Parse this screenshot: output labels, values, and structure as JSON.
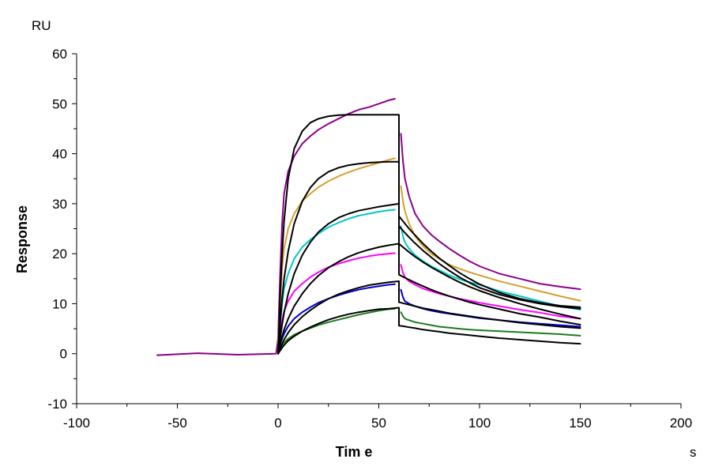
{
  "chart_data": {
    "type": "line",
    "title": "",
    "xlabel": "Tim e",
    "ylabel": "Response",
    "x_unit": "s",
    "y_unit": "RU",
    "xlim": [
      -100,
      200
    ],
    "ylim": [
      -10,
      60
    ],
    "x_ticks": [
      -100,
      -50,
      0,
      50,
      100,
      150,
      200
    ],
    "y_ticks": [
      -10,
      0,
      10,
      20,
      30,
      40,
      50,
      60
    ],
    "grid": false,
    "legend": "none",
    "series": [
      {
        "color": "#8B008B",
        "x": [
          -60,
          -40,
          -20,
          -1,
          0,
          1,
          2,
          3,
          5,
          8,
          12,
          16,
          20,
          25,
          30,
          35,
          40,
          45,
          50,
          55,
          58,
          60,
          61,
          62,
          63,
          65,
          68,
          72,
          76,
          80,
          85,
          90,
          95,
          100,
          110,
          120,
          130,
          140,
          150
        ],
        "y": [
          -0.3,
          0.1,
          -0.2,
          0.0,
          3.0,
          16.0,
          26.0,
          32.0,
          36.5,
          39.5,
          42.0,
          43.5,
          44.8,
          46.0,
          47.0,
          48.0,
          48.8,
          49.3,
          50.0,
          50.7,
          51.0,
          null,
          44.0,
          38.5,
          35.0,
          31.5,
          28.0,
          25.5,
          23.8,
          22.5,
          21.0,
          19.7,
          18.5,
          17.5,
          16.0,
          15.0,
          14.0,
          13.4,
          12.9
        ]
      },
      {
        "color": "#D4A030",
        "x": [
          0,
          1,
          2,
          3,
          5,
          8,
          12,
          16,
          20,
          25,
          30,
          35,
          40,
          45,
          50,
          55,
          58,
          60,
          61,
          62,
          63,
          65,
          68,
          72,
          76,
          80,
          85,
          90,
          95,
          100,
          110,
          120,
          130,
          140,
          150
        ],
        "y": [
          2.0,
          10.0,
          17.0,
          21.0,
          25.0,
          28.0,
          30.5,
          32.0,
          33.3,
          34.5,
          35.5,
          36.3,
          37.0,
          37.6,
          38.2,
          38.8,
          39.1,
          null,
          33.5,
          30.5,
          28.5,
          26.0,
          23.5,
          21.5,
          20.0,
          19.0,
          17.8,
          17.0,
          16.3,
          15.7,
          14.5,
          13.5,
          12.5,
          11.5,
          10.6
        ]
      },
      {
        "color": "#00C8C8",
        "x": [
          0,
          1,
          2,
          3,
          5,
          8,
          12,
          16,
          20,
          25,
          30,
          35,
          40,
          45,
          50,
          55,
          58,
          60,
          61,
          62,
          63,
          65,
          68,
          72,
          76,
          80,
          85,
          90,
          95,
          100,
          110,
          120,
          130,
          140,
          150
        ],
        "y": [
          1.5,
          6.0,
          10.0,
          13.0,
          16.0,
          19.0,
          21.3,
          22.8,
          24.0,
          25.3,
          26.2,
          27.0,
          27.6,
          28.0,
          28.4,
          28.7,
          28.8,
          null,
          25.5,
          23.5,
          22.3,
          21.0,
          19.7,
          18.5,
          17.5,
          16.7,
          15.7,
          14.9,
          14.3,
          13.8,
          12.5,
          11.5,
          10.5,
          9.5,
          8.8
        ]
      },
      {
        "color": "#FF00FF",
        "x": [
          0,
          1,
          2,
          3,
          5,
          8,
          12,
          16,
          20,
          25,
          30,
          35,
          40,
          45,
          50,
          55,
          58,
          60,
          61,
          62,
          63,
          65,
          68,
          72,
          76,
          80,
          85,
          90,
          95,
          100,
          110,
          120,
          130,
          140,
          150
        ],
        "y": [
          1.0,
          4.0,
          6.5,
          8.5,
          10.5,
          12.5,
          14.0,
          15.3,
          16.3,
          17.3,
          18.0,
          18.6,
          19.1,
          19.5,
          19.8,
          20.0,
          20.1,
          null,
          17.8,
          16.2,
          15.3,
          14.5,
          13.8,
          13.0,
          12.5,
          12.0,
          11.5,
          11.0,
          10.6,
          10.2,
          9.5,
          8.8,
          8.2,
          7.5,
          7.0
        ]
      },
      {
        "color": "#0000CD",
        "x": [
          0,
          1,
          2,
          3,
          5,
          8,
          12,
          16,
          20,
          25,
          30,
          35,
          40,
          45,
          50,
          55,
          58,
          60,
          61,
          62,
          63,
          65,
          68,
          72,
          76,
          80,
          85,
          90,
          95,
          100,
          110,
          120,
          130,
          140,
          150
        ],
        "y": [
          0.5,
          2.0,
          3.0,
          4.0,
          5.5,
          7.0,
          8.3,
          9.3,
          10.2,
          11.0,
          11.7,
          12.3,
          12.8,
          13.2,
          13.5,
          13.8,
          13.9,
          null,
          12.8,
          11.3,
          10.5,
          10.0,
          9.5,
          9.0,
          8.6,
          8.3,
          8.0,
          7.7,
          7.4,
          7.1,
          6.7,
          6.3,
          6.0,
          5.7,
          5.4
        ]
      },
      {
        "color": "#1E7B1E",
        "x": [
          0,
          1,
          2,
          3,
          5,
          8,
          12,
          16,
          20,
          25,
          30,
          35,
          40,
          45,
          50,
          55,
          58,
          60,
          61,
          62,
          63,
          65,
          68,
          72,
          76,
          80,
          85,
          90,
          95,
          100,
          110,
          120,
          130,
          140,
          150
        ],
        "y": [
          0.0,
          1.0,
          1.7,
          2.2,
          3.0,
          3.8,
          4.5,
          5.1,
          5.7,
          6.3,
          6.8,
          7.3,
          7.8,
          8.2,
          8.6,
          8.9,
          9.0,
          null,
          8.3,
          7.5,
          7.0,
          6.7,
          6.3,
          6.0,
          5.7,
          5.4,
          5.2,
          5.0,
          4.8,
          4.7,
          4.5,
          4.3,
          4.1,
          3.9,
          3.6
        ]
      },
      {
        "color": "#000000",
        "x": [
          0,
          1,
          2,
          3,
          5,
          8,
          12,
          16,
          20,
          25,
          30,
          35,
          40,
          45,
          50,
          55,
          60,
          60,
          62,
          65,
          68,
          72,
          76,
          80,
          85,
          90,
          95,
          100,
          110,
          120,
          130,
          140,
          150
        ],
        "y": [
          0.0,
          11.5,
          20.0,
          26.5,
          35.0,
          41.0,
          44.5,
          46.2,
          47.0,
          47.5,
          47.7,
          47.8,
          47.8,
          47.8,
          47.8,
          47.8,
          47.8,
          27.5,
          26.5,
          25.0,
          23.7,
          22.0,
          20.5,
          19.1,
          17.6,
          16.2,
          15.0,
          13.9,
          12.2,
          11.0,
          10.2,
          9.6,
          9.3
        ]
      },
      {
        "color": "#000000",
        "x": [
          0,
          1,
          2,
          3,
          5,
          8,
          12,
          16,
          20,
          25,
          30,
          35,
          40,
          45,
          50,
          55,
          60,
          60,
          62,
          65,
          68,
          72,
          76,
          80,
          85,
          90,
          95,
          100,
          110,
          120,
          130,
          140,
          150
        ],
        "y": [
          0.0,
          6.0,
          11.0,
          15.0,
          20.5,
          26.0,
          30.5,
          33.2,
          35.0,
          36.4,
          37.2,
          37.7,
          38.0,
          38.2,
          38.3,
          38.4,
          38.4,
          25.5,
          24.6,
          23.3,
          22.1,
          20.6,
          19.3,
          18.0,
          16.6,
          15.3,
          14.2,
          13.2,
          11.8,
          10.8,
          10.0,
          9.4,
          9.0
        ]
      },
      {
        "color": "#000000",
        "x": [
          0,
          1,
          2,
          3,
          5,
          8,
          12,
          16,
          20,
          25,
          30,
          35,
          40,
          45,
          50,
          55,
          60,
          60,
          62,
          65,
          68,
          72,
          76,
          80,
          85,
          90,
          95,
          100,
          110,
          120,
          130,
          140,
          150
        ],
        "y": [
          0.0,
          3.0,
          5.8,
          8.2,
          12.0,
          16.0,
          19.7,
          22.3,
          24.3,
          26.0,
          27.2,
          28.0,
          28.6,
          29.0,
          29.4,
          29.7,
          30.0,
          22.0,
          21.3,
          20.3,
          19.4,
          18.3,
          17.3,
          16.4,
          15.3,
          14.3,
          13.4,
          12.6,
          11.2,
          10.0,
          8.9,
          7.9,
          7.0
        ]
      },
      {
        "color": "#000000",
        "x": [
          0,
          1,
          2,
          3,
          5,
          8,
          12,
          16,
          20,
          25,
          30,
          35,
          40,
          45,
          50,
          55,
          60,
          60,
          62,
          65,
          68,
          72,
          76,
          80,
          85,
          90,
          95,
          100,
          110,
          120,
          130,
          140,
          150
        ],
        "y": [
          0.0,
          1.8,
          3.4,
          4.8,
          7.0,
          9.5,
          12.0,
          14.0,
          15.6,
          17.2,
          18.4,
          19.4,
          20.2,
          20.8,
          21.3,
          21.7,
          22.0,
          15.8,
          15.4,
          14.8,
          14.2,
          13.5,
          12.8,
          12.2,
          11.5,
          10.9,
          10.3,
          9.8,
          8.9,
          8.0,
          7.3,
          6.5,
          5.8
        ]
      },
      {
        "color": "#000000",
        "x": [
          0,
          1,
          2,
          3,
          5,
          8,
          12,
          16,
          20,
          25,
          30,
          35,
          40,
          45,
          50,
          55,
          60,
          60,
          62,
          65,
          68,
          72,
          76,
          80,
          85,
          90,
          95,
          100,
          110,
          120,
          130,
          140,
          150
        ],
        "y": [
          0.0,
          1.0,
          2.0,
          2.8,
          4.2,
          5.8,
          7.4,
          8.7,
          9.8,
          11.0,
          11.9,
          12.6,
          13.2,
          13.7,
          14.0,
          14.3,
          14.5,
          10.3,
          10.1,
          9.8,
          9.5,
          9.1,
          8.8,
          8.5,
          8.1,
          7.8,
          7.5,
          7.2,
          6.7,
          6.2,
          5.8,
          5.4,
          5.1
        ]
      },
      {
        "color": "#000000",
        "x": [
          0,
          1,
          2,
          3,
          5,
          8,
          12,
          16,
          20,
          25,
          30,
          35,
          40,
          45,
          50,
          55,
          60,
          60,
          62,
          65,
          68,
          72,
          76,
          80,
          85,
          90,
          95,
          100,
          110,
          120,
          130,
          140,
          150
        ],
        "y": [
          0.0,
          0.6,
          1.2,
          1.7,
          2.6,
          3.5,
          4.5,
          5.3,
          6.0,
          6.8,
          7.4,
          7.9,
          8.3,
          8.6,
          8.9,
          9.0,
          9.2,
          5.6,
          5.5,
          5.3,
          5.1,
          4.8,
          4.6,
          4.4,
          4.1,
          3.9,
          3.7,
          3.5,
          3.1,
          2.8,
          2.5,
          2.2,
          2.0
        ]
      }
    ]
  }
}
